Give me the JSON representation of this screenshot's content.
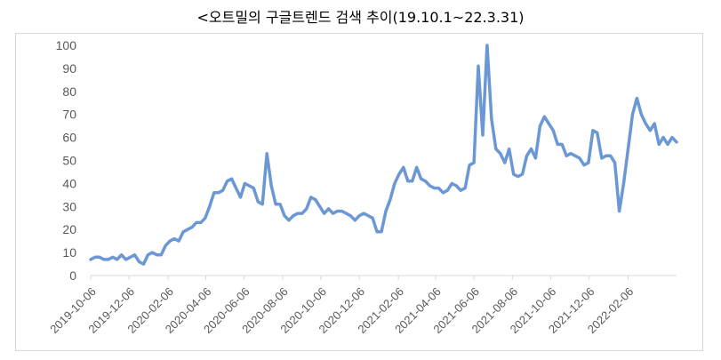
{
  "title": "<오트밀의 구글트렌드 검색 추이(19.10.1~22.3.31)",
  "chart_data": {
    "type": "line",
    "title": "<오트밀의 구글트렌드 검색 추이(19.10.1~22.3.31)",
    "xlabel": "",
    "ylabel": "",
    "ylim": [
      0,
      100
    ],
    "yticks": [
      0,
      10,
      20,
      30,
      40,
      50,
      60,
      70,
      80,
      90,
      100
    ],
    "x_tick_labels": [
      "2019-10-06",
      "2019-12-06",
      "2020-02-06",
      "2020-04-06",
      "2020-06-06",
      "2020-08-06",
      "2020-10-06",
      "2020-12-06",
      "2021-02-06",
      "2021-04-06",
      "2021-06-06",
      "2021-08-06",
      "2021-10-06",
      "2021-12-06",
      "2022-02-06"
    ],
    "x_tick_label_rotation": -45,
    "grid": false,
    "legend": "none",
    "line_color": "#6b98d4",
    "series": [
      {
        "name": "",
        "x_start": "2019-10-06",
        "x_step_days": 7,
        "values": [
          7,
          8,
          8,
          7,
          7,
          8,
          7,
          9,
          7,
          8,
          9,
          6,
          5,
          9,
          10,
          9,
          9,
          13,
          15,
          16,
          15,
          19,
          20,
          21,
          23,
          23,
          25,
          30,
          36,
          36,
          37,
          41,
          42,
          38,
          34,
          40,
          39,
          38,
          32,
          31,
          53,
          39,
          31,
          31,
          26,
          24,
          26,
          27,
          27,
          29,
          34,
          33,
          30,
          27,
          29,
          27,
          28,
          28,
          27,
          26,
          24,
          26,
          27,
          26,
          25,
          19,
          19,
          28,
          33,
          40,
          44,
          47,
          41,
          41,
          47,
          42,
          41,
          39,
          38,
          38,
          36,
          37,
          40,
          39,
          37,
          38,
          48,
          49,
          91,
          61,
          100,
          68,
          55,
          53,
          49,
          55,
          44,
          43,
          44,
          52,
          55,
          51,
          65,
          69,
          66,
          63,
          57,
          57,
          52,
          53,
          52,
          51,
          48,
          49,
          63,
          62,
          51,
          52,
          52,
          49,
          28,
          40,
          55,
          70,
          77,
          70,
          66,
          63,
          66,
          57,
          60,
          57,
          60,
          58
        ]
      }
    ]
  }
}
